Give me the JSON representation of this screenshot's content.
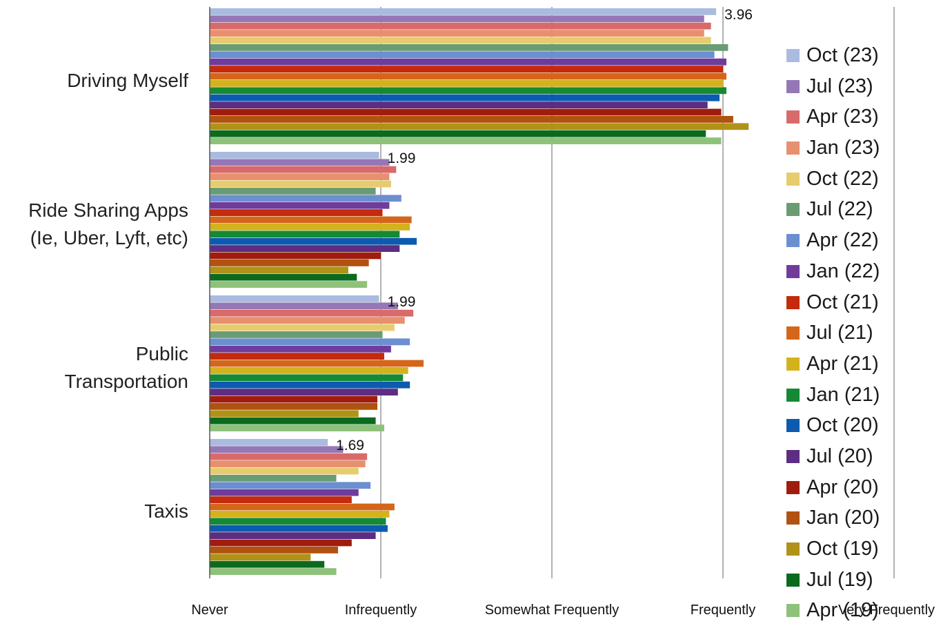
{
  "chart_data": {
    "type": "bar",
    "orientation": "horizontal",
    "categories": [
      "Driving Myself",
      "Ride Sharing Apps\n(Ie, Uber, Lyft, etc)",
      "Public\nTransportation",
      "Taxis"
    ],
    "x_tick_labels": [
      "Never",
      "Infrequently",
      "Somewhat Frequently",
      "Frequently",
      "Very Frequently"
    ],
    "xlim": [
      1,
      5
    ],
    "grid": true,
    "legend_position": "right",
    "data_labels": [
      {
        "category": 0,
        "series": 0,
        "text": "3.96"
      },
      {
        "category": 1,
        "series": 0,
        "text": "1.99"
      },
      {
        "category": 2,
        "series": 0,
        "text": "1.99"
      },
      {
        "category": 3,
        "series": 0,
        "text": "1.69"
      }
    ],
    "series": [
      {
        "name": "Oct (23)",
        "color": "#aabbe0",
        "values": [
          3.96,
          1.99,
          1.99,
          1.69
        ]
      },
      {
        "name": "Jul (23)",
        "color": "#9677b5",
        "values": [
          3.89,
          2.05,
          2.1,
          1.78
        ]
      },
      {
        "name": "Apr (23)",
        "color": "#d96a6a",
        "values": [
          3.93,
          2.09,
          2.19,
          1.92
        ]
      },
      {
        "name": "Jan (23)",
        "color": "#e8906e",
        "values": [
          3.89,
          2.05,
          2.14,
          1.91
        ]
      },
      {
        "name": "Oct (22)",
        "color": "#e6cc6e",
        "values": [
          3.93,
          2.06,
          2.08,
          1.87
        ]
      },
      {
        "name": "Jul (22)",
        "color": "#6a9c74",
        "values": [
          4.03,
          1.97,
          2.01,
          1.74
        ]
      },
      {
        "name": "Apr (22)",
        "color": "#6b8fd0",
        "values": [
          3.95,
          2.12,
          2.17,
          1.94
        ]
      },
      {
        "name": "Jan (22)",
        "color": "#6f3c9c",
        "values": [
          4.02,
          2.05,
          2.06,
          1.87
        ]
      },
      {
        "name": "Oct (21)",
        "color": "#c42a0c",
        "values": [
          4.0,
          2.01,
          2.02,
          1.83
        ]
      },
      {
        "name": "Jul (21)",
        "color": "#d4661a",
        "values": [
          4.02,
          2.18,
          2.25,
          2.08
        ]
      },
      {
        "name": "Apr (21)",
        "color": "#d4b21e",
        "values": [
          4.0,
          2.17,
          2.16,
          2.05
        ]
      },
      {
        "name": "Jan (21)",
        "color": "#148a34",
        "values": [
          4.02,
          2.11,
          2.13,
          2.03
        ]
      },
      {
        "name": "Oct (20)",
        "color": "#0c5bb0",
        "values": [
          3.98,
          2.21,
          2.17,
          2.04
        ]
      },
      {
        "name": "Jul (20)",
        "color": "#5d2d82",
        "values": [
          3.91,
          2.11,
          2.1,
          1.97
        ]
      },
      {
        "name": "Apr (20)",
        "color": "#a01c0c",
        "values": [
          3.99,
          2.0,
          1.98,
          1.83
        ]
      },
      {
        "name": "Jan (20)",
        "color": "#b05210",
        "values": [
          4.06,
          1.93,
          1.98,
          1.75
        ]
      },
      {
        "name": "Oct (19)",
        "color": "#b09218",
        "values": [
          4.15,
          1.81,
          1.87,
          1.59
        ]
      },
      {
        "name": "Jul (19)",
        "color": "#0b6a1e",
        "values": [
          3.9,
          1.86,
          1.97,
          1.67
        ]
      },
      {
        "name": "Apr (19)",
        "color": "#8ec27a",
        "values": [
          3.99,
          1.92,
          2.02,
          1.74
        ]
      }
    ]
  }
}
